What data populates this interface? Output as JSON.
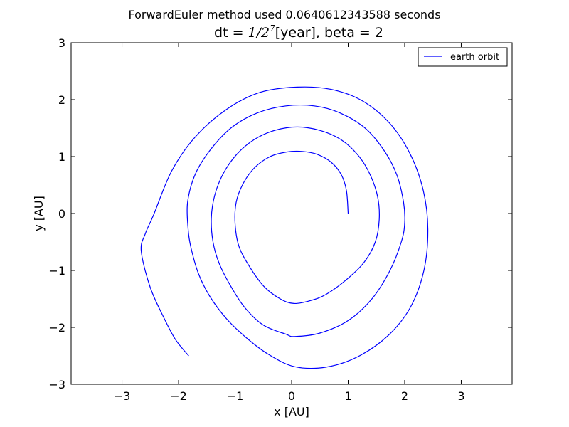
{
  "figure": {
    "suptitle": "ForwardEuler method used 0.0640612343588 seconds"
  },
  "chart_data": {
    "type": "line",
    "title_prefix": "dt = ",
    "title_math": "1/2",
    "title_exp": "7",
    "title_suffix": "[year], beta = 2",
    "xlabel": "x [AU]",
    "ylabel": "y [AU]",
    "xlim": [
      -3.9,
      3.9
    ],
    "ylim": [
      -3,
      3
    ],
    "xticks": [
      -3,
      -2,
      -1,
      0,
      1,
      2,
      3
    ],
    "xtick_labels": [
      "−3",
      "−2",
      "−1",
      "0",
      "1",
      "2",
      "3"
    ],
    "yticks": [
      -3,
      -2,
      -1,
      0,
      1,
      2,
      3
    ],
    "ytick_labels": [
      "−3",
      "−2",
      "−1",
      "0",
      "1",
      "2",
      "3"
    ],
    "grid": false,
    "legend_position": "top-right",
    "series": [
      {
        "name": "earth orbit",
        "color": "#0000ff",
        "points": [
          [
            1.0,
            0.0
          ],
          [
            0.97,
            0.4
          ],
          [
            0.88,
            0.68
          ],
          [
            0.7,
            0.9
          ],
          [
            0.45,
            1.04
          ],
          [
            0.19,
            1.09
          ],
          [
            -0.09,
            1.08
          ],
          [
            -0.38,
            1.0
          ],
          [
            -0.66,
            0.8
          ],
          [
            -0.86,
            0.52
          ],
          [
            -0.98,
            0.2
          ],
          [
            -1.0,
            -0.18
          ],
          [
            -0.93,
            -0.58
          ],
          [
            -0.74,
            -0.94
          ],
          [
            -0.49,
            -1.28
          ],
          [
            -0.2,
            -1.5
          ],
          [
            0.04,
            -1.58
          ],
          [
            0.33,
            -1.53
          ],
          [
            0.61,
            -1.42
          ],
          [
            0.96,
            -1.17
          ],
          [
            1.28,
            -0.86
          ],
          [
            1.48,
            -0.5
          ],
          [
            1.55,
            -0.1
          ],
          [
            1.52,
            0.3
          ],
          [
            1.38,
            0.7
          ],
          [
            1.17,
            1.03
          ],
          [
            0.87,
            1.3
          ],
          [
            0.5,
            1.46
          ],
          [
            0.1,
            1.52
          ],
          [
            -0.3,
            1.46
          ],
          [
            -0.66,
            1.3
          ],
          [
            -0.97,
            1.04
          ],
          [
            -1.21,
            0.7
          ],
          [
            -1.36,
            0.32
          ],
          [
            -1.42,
            -0.08
          ],
          [
            -1.39,
            -0.5
          ],
          [
            -1.28,
            -0.88
          ],
          [
            -1.08,
            -1.27
          ],
          [
            -0.83,
            -1.65
          ],
          [
            -0.5,
            -1.96
          ],
          [
            -0.1,
            -2.12
          ],
          [
            0.05,
            -2.16
          ],
          [
            0.5,
            -2.1
          ],
          [
            1.0,
            -1.88
          ],
          [
            1.42,
            -1.5
          ],
          [
            1.74,
            -1.0
          ],
          [
            1.94,
            -0.5
          ],
          [
            2.0,
            -0.17
          ],
          [
            1.98,
            0.2
          ],
          [
            1.86,
            0.68
          ],
          [
            1.64,
            1.1
          ],
          [
            1.3,
            1.5
          ],
          [
            0.85,
            1.77
          ],
          [
            0.4,
            1.89
          ],
          [
            -0.1,
            1.89
          ],
          [
            -0.6,
            1.77
          ],
          [
            -1.05,
            1.52
          ],
          [
            -1.42,
            1.14
          ],
          [
            -1.7,
            0.7
          ],
          [
            -1.84,
            0.2
          ],
          [
            -1.83,
            -0.28
          ],
          [
            -1.78,
            -0.6
          ],
          [
            -1.65,
            -1.05
          ],
          [
            -1.45,
            -1.45
          ],
          [
            -1.15,
            -1.85
          ],
          [
            -0.78,
            -2.2
          ],
          [
            -0.4,
            -2.48
          ],
          [
            0.05,
            -2.69
          ],
          [
            0.6,
            -2.7
          ],
          [
            1.16,
            -2.52
          ],
          [
            1.7,
            -2.15
          ],
          [
            2.1,
            -1.65
          ],
          [
            2.34,
            -1.0
          ],
          [
            2.41,
            -0.28
          ],
          [
            2.33,
            0.4
          ],
          [
            2.1,
            1.04
          ],
          [
            1.74,
            1.58
          ],
          [
            1.25,
            1.98
          ],
          [
            0.7,
            2.18
          ],
          [
            0.1,
            2.22
          ],
          [
            -0.55,
            2.13
          ],
          [
            -1.15,
            1.83
          ],
          [
            -1.7,
            1.35
          ],
          [
            -2.12,
            0.75
          ],
          [
            -2.44,
            -0.02
          ],
          [
            -2.59,
            -0.36
          ],
          [
            -2.66,
            -0.66
          ],
          [
            -2.5,
            -1.3
          ],
          [
            -2.25,
            -1.85
          ],
          [
            -2.05,
            -2.22
          ],
          [
            -1.82,
            -2.5
          ]
        ]
      }
    ]
  }
}
